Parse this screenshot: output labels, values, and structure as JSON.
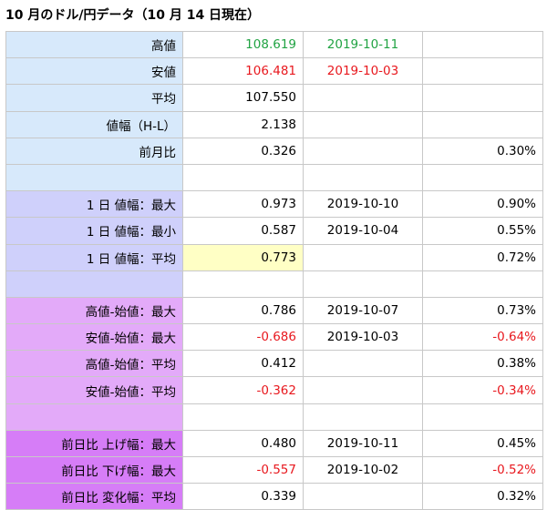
{
  "title": "10 月のドル/円データ（10 月 14 日現在）",
  "colors": {
    "high_text": "#21a343",
    "negative_text": "#e8181e",
    "group1_bg": "#d7e9fb",
    "group2_bg": "#cfd0fb",
    "group3_bg": "#e3aaf9",
    "group4_bg": "#d67df7",
    "highlight_bg": "#ffffc5"
  },
  "rows": [
    {
      "label": "高値",
      "value": "108.619",
      "date": "2019-10-11",
      "pct": ""
    },
    {
      "label": "安値",
      "value": "106.481",
      "date": "2019-10-03",
      "pct": ""
    },
    {
      "label": "平均",
      "value": "107.550",
      "date": "",
      "pct": ""
    },
    {
      "label": "値幅（H-L）",
      "value": "2.138",
      "date": "",
      "pct": ""
    },
    {
      "label": "前月比",
      "value": "0.326",
      "date": "",
      "pct": "0.30%"
    },
    {
      "label": "",
      "value": "",
      "date": "",
      "pct": ""
    },
    {
      "label": "1 日 値幅：最大",
      "value": "0.973",
      "date": "2019-10-10",
      "pct": "0.90%"
    },
    {
      "label": "1 日 値幅：最小",
      "value": "0.587",
      "date": "2019-10-04",
      "pct": "0.55%"
    },
    {
      "label": "1 日 値幅：平均",
      "value": "0.773",
      "date": "",
      "pct": "0.72%"
    },
    {
      "label": "",
      "value": "",
      "date": "",
      "pct": ""
    },
    {
      "label": "高値-始値：最大",
      "value": "0.786",
      "date": "2019-10-07",
      "pct": "0.73%"
    },
    {
      "label": "安値-始値：最大",
      "value": "-0.686",
      "date": "2019-10-03",
      "pct": "-0.64%"
    },
    {
      "label": "高値-始値：平均",
      "value": "0.412",
      "date": "",
      "pct": "0.38%"
    },
    {
      "label": "安値-始値：平均",
      "value": "-0.362",
      "date": "",
      "pct": "-0.34%"
    },
    {
      "label": "",
      "value": "",
      "date": "",
      "pct": ""
    },
    {
      "label": "前日比 上げ幅：最大",
      "value": "0.480",
      "date": "2019-10-11",
      "pct": "0.45%"
    },
    {
      "label": "前日比 下げ幅：最大",
      "value": "-0.557",
      "date": "2019-10-02",
      "pct": "-0.52%"
    },
    {
      "label": "前日比 変化幅：平均",
      "value": "0.339",
      "date": "",
      "pct": "0.32%"
    }
  ]
}
